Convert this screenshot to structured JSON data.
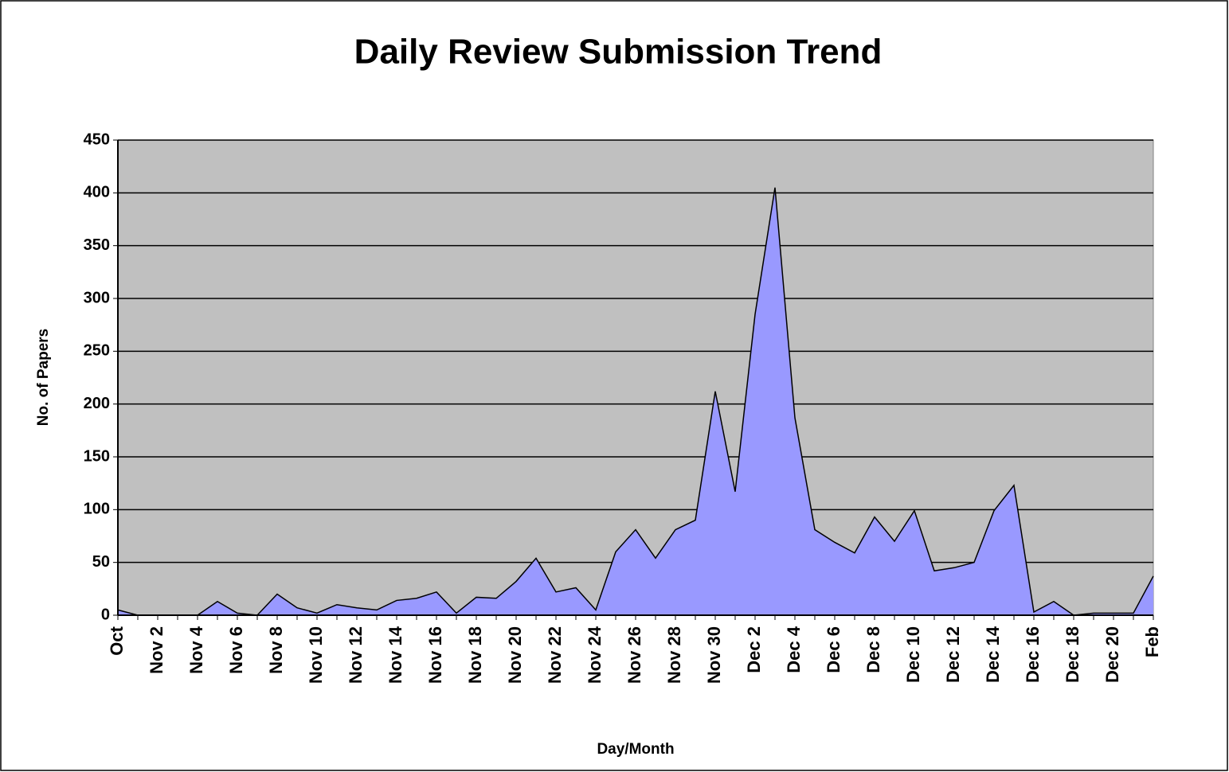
{
  "chart_data": {
    "type": "area",
    "title": "Daily Review Submission Trend",
    "x_label": "Day/Month",
    "y_label": "No. of Papers",
    "categories": [
      "Oct",
      null,
      "Nov 2",
      null,
      "Nov 4",
      null,
      "Nov 6",
      null,
      "Nov 8",
      null,
      "Nov 10",
      null,
      "Nov 12",
      null,
      "Nov 14",
      null,
      "Nov 16",
      null,
      "Nov 18",
      null,
      "Nov 20",
      null,
      "Nov 22",
      null,
      "Nov 24",
      null,
      "Nov 26",
      null,
      "Nov 28",
      null,
      "Nov 30",
      null,
      "Dec 2",
      null,
      "Dec 4",
      null,
      "Dec 6",
      null,
      "Dec 8",
      null,
      "Dec 10",
      null,
      "Dec 12",
      null,
      "Dec 14",
      null,
      "Dec 16",
      null,
      "Dec 18",
      null,
      "Dec 20",
      null,
      "Feb"
    ],
    "values": [
      5,
      0,
      0,
      0,
      0,
      13,
      2,
      0,
      20,
      7,
      2,
      10,
      7,
      5,
      14,
      16,
      22,
      2,
      17,
      16,
      32,
      54,
      22,
      26,
      5,
      60,
      81,
      54,
      81,
      90,
      212,
      117,
      285,
      405,
      187,
      81,
      69,
      59,
      93,
      70,
      99,
      42,
      45,
      50,
      99,
      123,
      3,
      13,
      0,
      2,
      2,
      2,
      37
    ],
    "color": "#9999ff",
    "plot_background": "#c0c0c0",
    "ylim": [
      0,
      450
    ],
    "yticks": [
      0,
      50,
      100,
      150,
      200,
      250,
      300,
      350,
      400,
      450
    ],
    "grid": true
  }
}
